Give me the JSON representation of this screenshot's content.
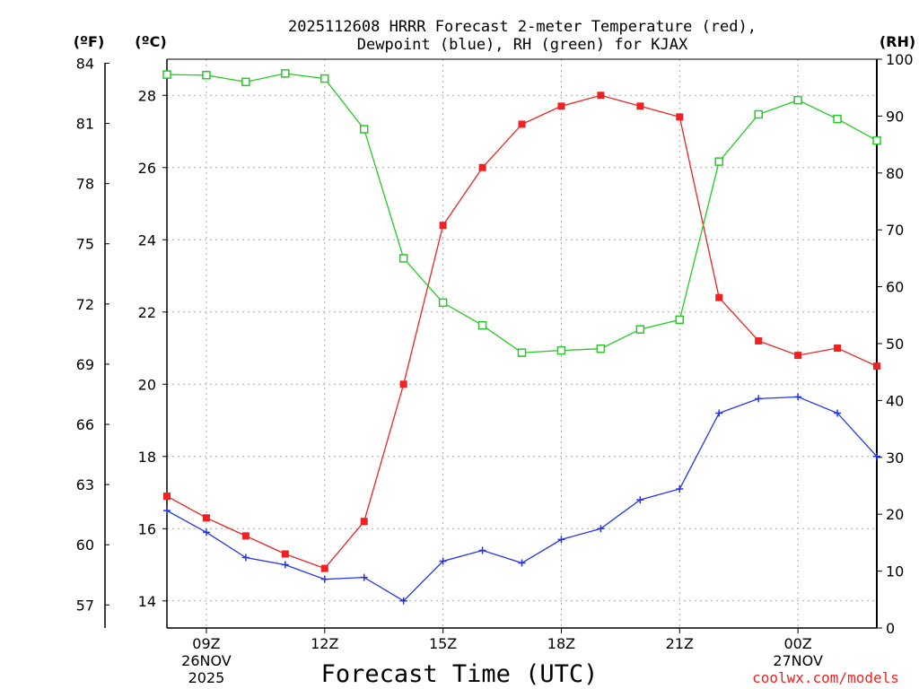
{
  "chart_data": {
    "type": "line",
    "title_line1": "2025112608 HRRR Forecast 2-meter Temperature (red),",
    "title_line2": "Dewpoint (blue), RH (green) for KJAX",
    "xlabel": "Forecast Time (UTC)",
    "watermark": "coolwx.com/models",
    "unit_labels": {
      "fahrenheit": "(ºF)",
      "celsius": "(ºC)",
      "rh": "(RH)"
    },
    "x_hours": [
      8,
      9,
      10,
      11,
      12,
      13,
      14,
      15,
      16,
      17,
      18,
      19,
      20,
      21,
      22,
      23,
      24,
      25,
      26
    ],
    "xlim": [
      8,
      26
    ],
    "x_ticks": [
      {
        "hour": 9,
        "label": "09Z",
        "date1": "26NOV",
        "date2": "2025"
      },
      {
        "hour": 12,
        "label": "12Z",
        "date1": "",
        "date2": ""
      },
      {
        "hour": 15,
        "label": "15Z",
        "date1": "",
        "date2": ""
      },
      {
        "hour": 18,
        "label": "18Z",
        "date1": "",
        "date2": ""
      },
      {
        "hour": 21,
        "label": "21Z",
        "date1": "",
        "date2": ""
      },
      {
        "hour": 24,
        "label": "00Z",
        "date1": "27NOV",
        "date2": ""
      }
    ],
    "celsius_axis": {
      "ylim": [
        13.25,
        29.0
      ],
      "ticks": [
        14,
        16,
        18,
        20,
        22,
        24,
        26,
        28
      ]
    },
    "fahrenheit_axis": {
      "ylim": [
        55.85,
        84.2
      ],
      "ticks": [
        57,
        60,
        63,
        66,
        69,
        72,
        75,
        78,
        81,
        84
      ]
    },
    "rh_axis": {
      "ylim": [
        0,
        100
      ],
      "ticks": [
        0,
        10,
        20,
        30,
        40,
        50,
        60,
        70,
        80,
        90,
        100
      ]
    },
    "series": [
      {
        "name": "Temperature",
        "unit": "C",
        "color": "#ee2222",
        "values": [
          16.9,
          16.3,
          15.8,
          15.3,
          14.9,
          16.2,
          20.0,
          24.4,
          26.0,
          27.2,
          27.7,
          28.0,
          27.7,
          27.4,
          22.4,
          21.2,
          20.8,
          21.0,
          20.5
        ]
      },
      {
        "name": "Dewpoint",
        "unit": "C",
        "color": "#2233ee",
        "values": [
          16.5,
          15.9,
          15.2,
          15.0,
          14.6,
          14.65,
          14.0,
          15.1,
          15.4,
          15.05,
          15.7,
          16.0,
          16.8,
          17.1,
          19.2,
          19.6,
          19.65,
          19.2,
          18.0
        ]
      },
      {
        "name": "RH",
        "unit": "%",
        "color": "#22cc22",
        "values": [
          97.3,
          97.2,
          96.0,
          97.5,
          96.6,
          87.7,
          65.0,
          57.2,
          53.2,
          48.4,
          48.8,
          49.1,
          52.5,
          54.2,
          82.0,
          90.3,
          92.8,
          89.5,
          85.7
        ]
      }
    ]
  }
}
